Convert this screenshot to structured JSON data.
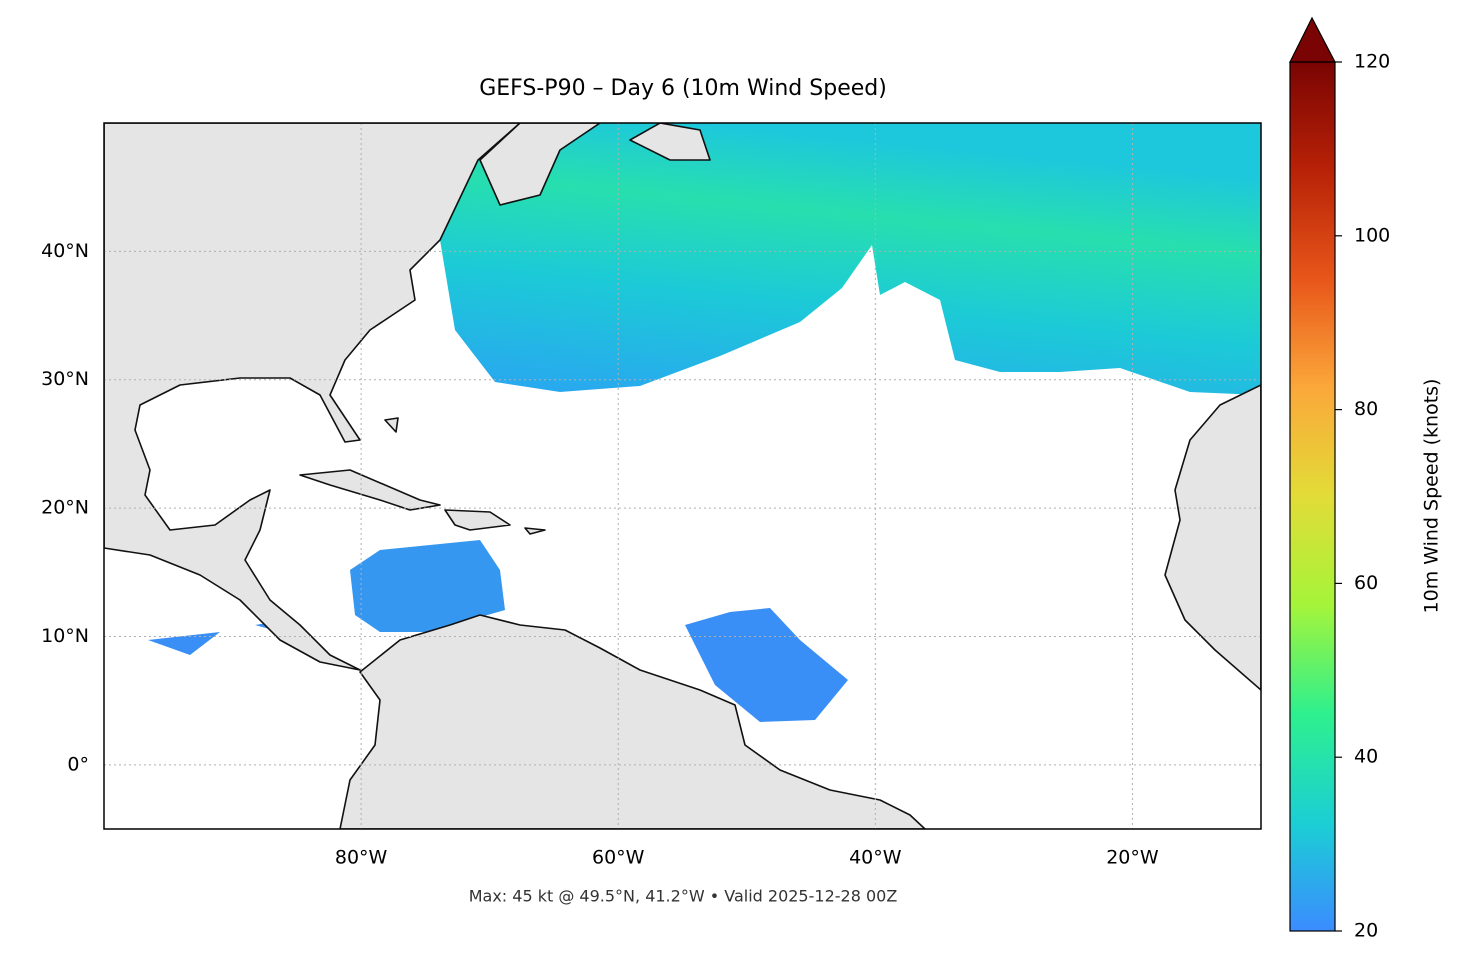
{
  "chart_data": {
    "type": "map",
    "title": "GEFS-P90 – Day 6 (10m Wind Speed)",
    "footer": "Max: 45 kt @ 49.5°N, 41.2°W • Valid 2025-12-28 00Z",
    "xlim": [
      -100,
      -10
    ],
    "ylim": [
      -5,
      50
    ],
    "xticks": [
      {
        "value": -80,
        "label": "80°W"
      },
      {
        "value": -60,
        "label": "60°W"
      },
      {
        "value": -40,
        "label": "40°W"
      },
      {
        "value": -20,
        "label": "20°W"
      }
    ],
    "yticks": [
      {
        "value": 0,
        "label": "0°"
      },
      {
        "value": 10,
        "label": "10°N"
      },
      {
        "value": 20,
        "label": "20°N"
      },
      {
        "value": 30,
        "label": "30°N"
      },
      {
        "value": 40,
        "label": "40°N"
      }
    ],
    "grid": true,
    "colorbar": {
      "label": "10m Wind Speed (knots)",
      "lim": [
        20,
        120
      ],
      "ticks": [
        20,
        40,
        60,
        80,
        100,
        120
      ],
      "colors": [
        "#3b8cff",
        "#1bcfd4",
        "#2ef08e",
        "#a5f43a",
        "#e2dc37",
        "#fba83a",
        "#e8561a",
        "#b82207",
        "#7a0403"
      ]
    }
  }
}
